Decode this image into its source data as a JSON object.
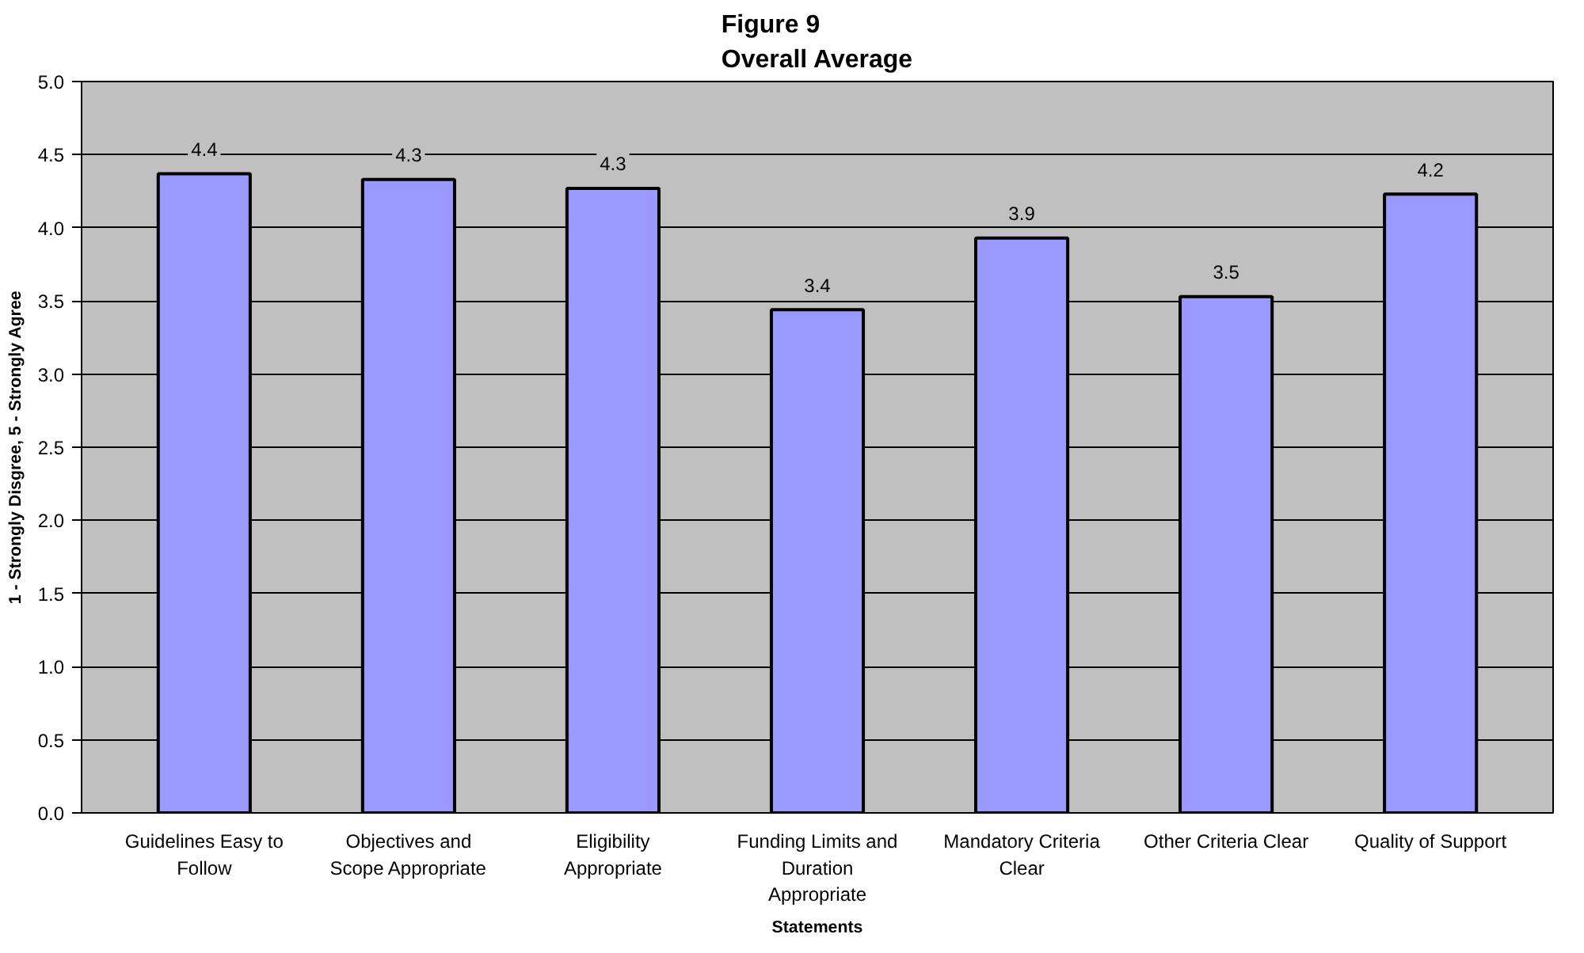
{
  "chart_data": {
    "type": "bar",
    "title": "Figure 9\nOverall Average",
    "xlabel": "Statements",
    "ylabel": "1 - Strongly Disgree, 5 - Strongly Agree",
    "categories": [
      "Guidelines Easy to\nFollow",
      "Objectives and\nScope Appropriate",
      "Eligibility\nAppropriate",
      "Funding Limits and\nDuration\nAppropriate",
      "Mandatory Criteria\nClear",
      "Other Criteria Clear",
      "Quality of Support"
    ],
    "values": [
      4.37,
      4.33,
      4.27,
      3.44,
      3.93,
      3.53,
      4.23
    ],
    "value_labels": [
      "4.4",
      "4.3",
      "4.3",
      "3.4",
      "3.9",
      "3.5",
      "4.2"
    ],
    "color": "#9999ff",
    "ylim": [
      0,
      5
    ],
    "yticks": [
      {
        "value": 0,
        "label": "0.0"
      },
      {
        "value": 0.5,
        "label": "0.5"
      },
      {
        "value": 1,
        "label": "1.0"
      },
      {
        "value": 1.5,
        "label": "1.5"
      },
      {
        "value": 2,
        "label": "2.0"
      },
      {
        "value": 2.5,
        "label": "2.5"
      },
      {
        "value": 3,
        "label": "3.0"
      },
      {
        "value": 3.5,
        "label": "3.5"
      },
      {
        "value": 4,
        "label": "4.0"
      },
      {
        "value": 4.5,
        "label": "4.5"
      },
      {
        "value": 5,
        "label": "5.0"
      }
    ],
    "grid": "y"
  }
}
